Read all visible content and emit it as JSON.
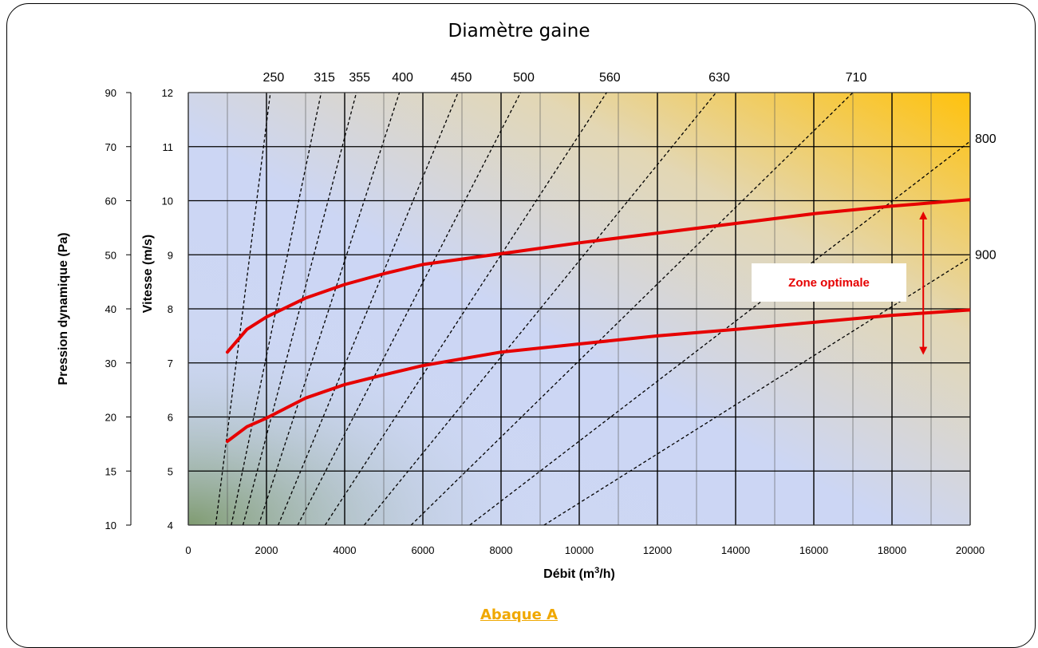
{
  "chart_data": {
    "type": "line",
    "title": "Diamètre gaine",
    "caption": "Abaque A",
    "xlabel": "Débit (m³/h)",
    "xlabel_main": "Débit (m",
    "xlabel_sup": "3",
    "xlabel_end": "/h)",
    "ylabel_velocity": "Vitesse (m/s)",
    "ylabel_pressure": "Pression dynamique (Pa)",
    "xlim": [
      0,
      20000
    ],
    "ylim": [
      4,
      12
    ],
    "x_ticks": [
      0,
      2000,
      4000,
      6000,
      8000,
      10000,
      12000,
      14000,
      16000,
      18000,
      20000
    ],
    "velocity_ticks": [
      4,
      5,
      6,
      7,
      8,
      9,
      10,
      11,
      12
    ],
    "pressure_ticks": [
      {
        "v": 4,
        "label": "10"
      },
      {
        "v": 5,
        "label": "15"
      },
      {
        "v": 6,
        "label": "20"
      },
      {
        "v": 7,
        "label": "30"
      },
      {
        "v": 8,
        "label": "40"
      },
      {
        "v": 9,
        "label": "50"
      },
      {
        "v": 10,
        "label": "60"
      },
      {
        "v": 11,
        "label": "70"
      },
      {
        "v": 12,
        "label": "90"
      }
    ],
    "grid": true,
    "diameter_lines": [
      {
        "label": "250",
        "points": [
          [
            700,
            4
          ],
          [
            2100,
            12
          ]
        ]
      },
      {
        "label": "315",
        "points": [
          [
            1100,
            4
          ],
          [
            3400,
            12
          ]
        ]
      },
      {
        "label": "355",
        "points": [
          [
            1400,
            4
          ],
          [
            4300,
            12
          ]
        ]
      },
      {
        "label": "400",
        "points": [
          [
            1800,
            4
          ],
          [
            5400,
            12
          ]
        ]
      },
      {
        "label": "450",
        "points": [
          [
            2300,
            4
          ],
          [
            6900,
            12
          ]
        ]
      },
      {
        "label": "500",
        "points": [
          [
            2800,
            4
          ],
          [
            8500,
            12
          ]
        ]
      },
      {
        "label": "560",
        "points": [
          [
            3500,
            4
          ],
          [
            10700,
            12
          ]
        ]
      },
      {
        "label": "630",
        "points": [
          [
            4500,
            4
          ],
          [
            13500,
            12
          ]
        ]
      },
      {
        "label": "710",
        "points": [
          [
            5700,
            4
          ],
          [
            17000,
            12
          ]
        ]
      },
      {
        "label": "800",
        "points": [
          [
            7200,
            4
          ],
          [
            20000,
            11.1
          ]
        ]
      },
      {
        "label": "900",
        "points": [
          [
            9100,
            4
          ],
          [
            20000,
            8.95
          ]
        ]
      }
    ],
    "series": [
      {
        "color": "#e60000",
        "points": [
          [
            1000,
            7.2
          ],
          [
            1500,
            7.62
          ],
          [
            2000,
            7.85
          ],
          [
            3000,
            8.2
          ],
          [
            4000,
            8.45
          ],
          [
            5000,
            8.65
          ],
          [
            6000,
            8.82
          ],
          [
            8000,
            9.02
          ],
          [
            10000,
            9.22
          ],
          [
            12000,
            9.4
          ],
          [
            14000,
            9.58
          ],
          [
            16000,
            9.76
          ],
          [
            18000,
            9.9
          ],
          [
            20000,
            10.02
          ]
        ]
      },
      {
        "color": "#e60000",
        "points": [
          [
            1000,
            5.55
          ],
          [
            1500,
            5.82
          ],
          [
            2000,
            5.98
          ],
          [
            3000,
            6.35
          ],
          [
            4000,
            6.6
          ],
          [
            5000,
            6.78
          ],
          [
            6000,
            6.95
          ],
          [
            8000,
            7.2
          ],
          [
            10000,
            7.35
          ],
          [
            12000,
            7.5
          ],
          [
            14000,
            7.62
          ],
          [
            16000,
            7.75
          ],
          [
            18000,
            7.88
          ],
          [
            20000,
            7.98
          ]
        ]
      }
    ],
    "annotation": "Zone optimale",
    "arrow": {
      "x": 18800,
      "from": 9.8,
      "to": 7.15
    }
  }
}
